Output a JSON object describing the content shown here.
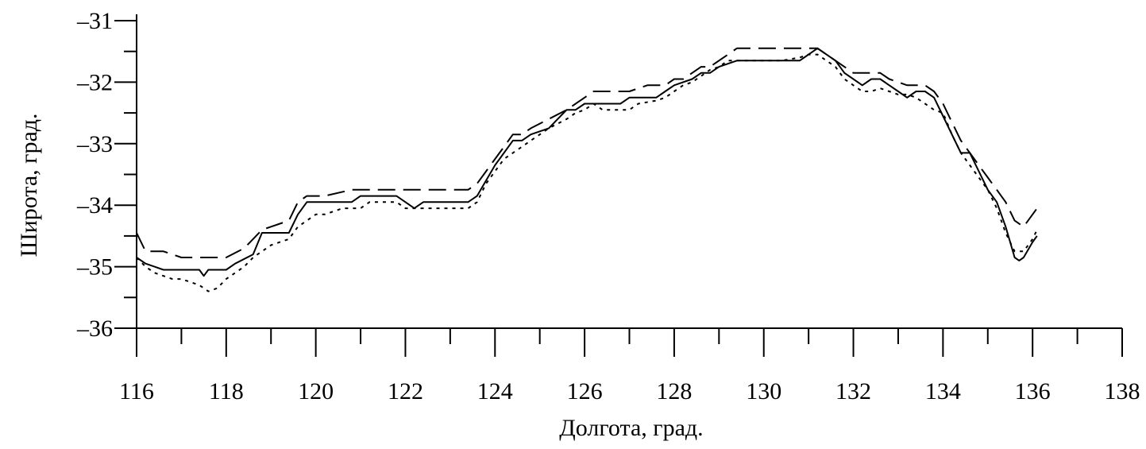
{
  "chart_data": {
    "type": "line",
    "xlabel": "Долгота, град.",
    "ylabel": "Широта, град.",
    "xlim": [
      116,
      138
    ],
    "ylim": [
      -36,
      -31
    ],
    "x_ticks": [
      116,
      118,
      120,
      122,
      124,
      126,
      128,
      130,
      132,
      134,
      136,
      138
    ],
    "x_tick_labels": [
      "116",
      "118",
      "120",
      "122",
      "124",
      "126",
      "128",
      "130",
      "132",
      "134",
      "136",
      "138"
    ],
    "y_ticks": [
      -36,
      -35,
      -34,
      -33,
      -32,
      -31
    ],
    "y_tick_labels": [
      "–36",
      "–35",
      "–34",
      "–33",
      "–32",
      "–31"
    ],
    "grid": false,
    "legend": null,
    "series": [
      {
        "style": "solid",
        "x": [
          116.0,
          116.2,
          116.4,
          116.6,
          117.0,
          117.4,
          117.5,
          117.6,
          118.0,
          118.2,
          118.6,
          118.8,
          119.4,
          119.6,
          119.8,
          120.2,
          120.8,
          121.0,
          121.8,
          122.0,
          122.2,
          122.4,
          122.6,
          123.4,
          123.6,
          123.8,
          124.0,
          124.2,
          124.4,
          124.6,
          124.8,
          125.2,
          125.4,
          125.6,
          125.8,
          126.0,
          126.2,
          126.8,
          127.0,
          127.6,
          127.8,
          128.0,
          128.4,
          128.6,
          128.8,
          129.0,
          129.4,
          130.0,
          130.4,
          130.8,
          131.0,
          131.2,
          131.4,
          131.6,
          131.8,
          132.0,
          132.2,
          132.4,
          132.6,
          132.8,
          133.0,
          133.2,
          133.4,
          133.6,
          133.8,
          134.0,
          134.2,
          134.4,
          134.6,
          134.8,
          135.0,
          135.2,
          135.4,
          135.6,
          135.7,
          135.8,
          136.0,
          136.1
        ],
        "y": [
          -34.85,
          -34.95,
          -35.0,
          -35.05,
          -35.05,
          -35.05,
          -35.15,
          -35.05,
          -35.05,
          -34.95,
          -34.8,
          -34.45,
          -34.45,
          -34.15,
          -33.95,
          -33.95,
          -33.95,
          -33.85,
          -33.85,
          -33.95,
          -34.05,
          -33.95,
          -33.95,
          -33.95,
          -33.85,
          -33.6,
          -33.35,
          -33.15,
          -32.95,
          -32.95,
          -32.85,
          -32.75,
          -32.6,
          -32.45,
          -32.45,
          -32.35,
          -32.35,
          -32.35,
          -32.25,
          -32.25,
          -32.15,
          -32.05,
          -31.95,
          -31.85,
          -31.85,
          -31.75,
          -31.65,
          -31.65,
          -31.65,
          -31.65,
          -31.55,
          -31.45,
          -31.55,
          -31.65,
          -31.85,
          -31.95,
          -32.05,
          -31.95,
          -31.95,
          -32.05,
          -32.15,
          -32.25,
          -32.15,
          -32.15,
          -32.25,
          -32.55,
          -32.85,
          -33.15,
          -33.15,
          -33.45,
          -33.75,
          -33.95,
          -34.35,
          -34.85,
          -34.9,
          -34.85,
          -34.6,
          -34.5
        ]
      },
      {
        "style": "dashed",
        "x": [
          116.0,
          116.2,
          116.6,
          117.0,
          117.6,
          118.0,
          118.4,
          118.6,
          118.8,
          119.0,
          119.4,
          119.6,
          119.8,
          120.0,
          120.2,
          120.8,
          121.2,
          121.8,
          122.0,
          123.4,
          123.6,
          123.8,
          124.0,
          124.2,
          124.4,
          124.6,
          124.8,
          125.2,
          125.6,
          126.0,
          126.2,
          126.4,
          126.8,
          127.0,
          127.4,
          127.8,
          128.0,
          128.2,
          128.4,
          128.6,
          128.8,
          129.0,
          129.2,
          129.4,
          130.0,
          130.6,
          131.0,
          131.2,
          131.4,
          131.6,
          131.8,
          132.0,
          132.2,
          132.6,
          132.8,
          133.2,
          133.6,
          133.8,
          134.0,
          134.2,
          134.4,
          134.6,
          134.8,
          135.0,
          135.2,
          135.4,
          135.6,
          135.8,
          136.0,
          136.1
        ],
        "y": [
          -34.45,
          -34.75,
          -34.75,
          -34.85,
          -34.85,
          -34.85,
          -34.7,
          -34.55,
          -34.4,
          -34.35,
          -34.25,
          -33.95,
          -33.85,
          -33.85,
          -33.85,
          -33.75,
          -33.75,
          -33.75,
          -33.75,
          -33.75,
          -33.65,
          -33.45,
          -33.25,
          -33.05,
          -32.85,
          -32.85,
          -32.75,
          -32.6,
          -32.45,
          -32.25,
          -32.15,
          -32.15,
          -32.15,
          -32.15,
          -32.05,
          -32.05,
          -31.95,
          -31.95,
          -31.85,
          -31.75,
          -31.75,
          -31.65,
          -31.55,
          -31.45,
          -31.45,
          -31.45,
          -31.45,
          -31.45,
          -31.55,
          -31.65,
          -31.75,
          -31.85,
          -31.85,
          -31.85,
          -31.95,
          -32.05,
          -32.05,
          -32.15,
          -32.35,
          -32.65,
          -32.95,
          -33.15,
          -33.35,
          -33.55,
          -33.75,
          -33.95,
          -34.25,
          -34.35,
          -34.15,
          -34.05
        ]
      },
      {
        "style": "dotted",
        "x": [
          116.0,
          116.2,
          116.4,
          116.6,
          116.8,
          117.0,
          117.2,
          117.4,
          117.6,
          117.8,
          118.0,
          118.2,
          118.4,
          118.6,
          118.8,
          119.0,
          119.4,
          119.6,
          119.8,
          120.0,
          120.2,
          120.6,
          121.0,
          121.2,
          121.6,
          121.8,
          122.0,
          122.4,
          123.4,
          123.6,
          123.8,
          124.0,
          124.2,
          124.4,
          124.6,
          124.8,
          125.0,
          125.2,
          125.6,
          125.8,
          126.0,
          126.2,
          126.4,
          126.6,
          127.0,
          127.2,
          127.6,
          127.8,
          128.0,
          128.2,
          128.4,
          128.6,
          128.8,
          129.0,
          129.2,
          129.4,
          129.8,
          130.0,
          130.4,
          130.8,
          131.0,
          131.2,
          131.4,
          131.6,
          131.8,
          132.0,
          132.2,
          132.4,
          132.6,
          132.8,
          133.0,
          133.2,
          133.4,
          133.6,
          133.8,
          134.0,
          134.2,
          134.4,
          134.6,
          134.8,
          135.0,
          135.2,
          135.4,
          135.6,
          135.8,
          136.0,
          136.1
        ],
        "y": [
          -34.85,
          -35.0,
          -35.1,
          -35.15,
          -35.2,
          -35.2,
          -35.25,
          -35.3,
          -35.4,
          -35.35,
          -35.2,
          -35.1,
          -35.0,
          -34.85,
          -34.75,
          -34.65,
          -34.55,
          -34.35,
          -34.25,
          -34.15,
          -34.15,
          -34.05,
          -34.05,
          -33.95,
          -33.95,
          -33.95,
          -34.05,
          -34.05,
          -34.05,
          -33.95,
          -33.65,
          -33.45,
          -33.25,
          -33.15,
          -33.05,
          -32.95,
          -32.85,
          -32.75,
          -32.6,
          -32.5,
          -32.45,
          -32.35,
          -32.45,
          -32.45,
          -32.45,
          -32.35,
          -32.3,
          -32.25,
          -32.15,
          -32.05,
          -32.0,
          -31.9,
          -31.8,
          -31.75,
          -31.65,
          -31.65,
          -31.65,
          -31.65,
          -31.65,
          -31.6,
          -31.55,
          -31.55,
          -31.65,
          -31.75,
          -31.95,
          -32.05,
          -32.15,
          -32.15,
          -32.1,
          -32.15,
          -32.2,
          -32.2,
          -32.25,
          -32.35,
          -32.45,
          -32.5,
          -32.85,
          -33.15,
          -33.35,
          -33.55,
          -33.75,
          -34.05,
          -34.45,
          -34.75,
          -34.75,
          -34.55,
          -34.4
        ]
      }
    ]
  }
}
